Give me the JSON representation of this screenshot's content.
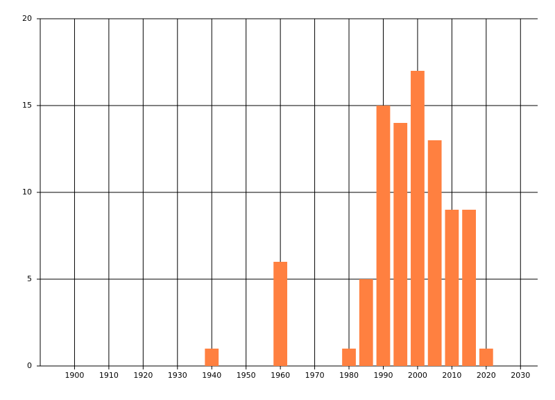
{
  "chart_data": {
    "type": "bar",
    "x": [
      1940,
      1960,
      1980,
      1985,
      1990,
      1995,
      2000,
      2005,
      2010,
      2015,
      2020
    ],
    "values": [
      1,
      6,
      1,
      5,
      15,
      14,
      17,
      13,
      9,
      9,
      1
    ],
    "color": "#ff8040",
    "xlim": [
      1890,
      2035
    ],
    "xticks": [
      1900,
      1910,
      1920,
      1930,
      1940,
      1950,
      1960,
      1970,
      1980,
      1990,
      2000,
      2010,
      2020,
      2030
    ],
    "ylim": [
      0,
      20
    ],
    "yticks": [
      0,
      5,
      10,
      15,
      20
    ],
    "grid": true
  }
}
